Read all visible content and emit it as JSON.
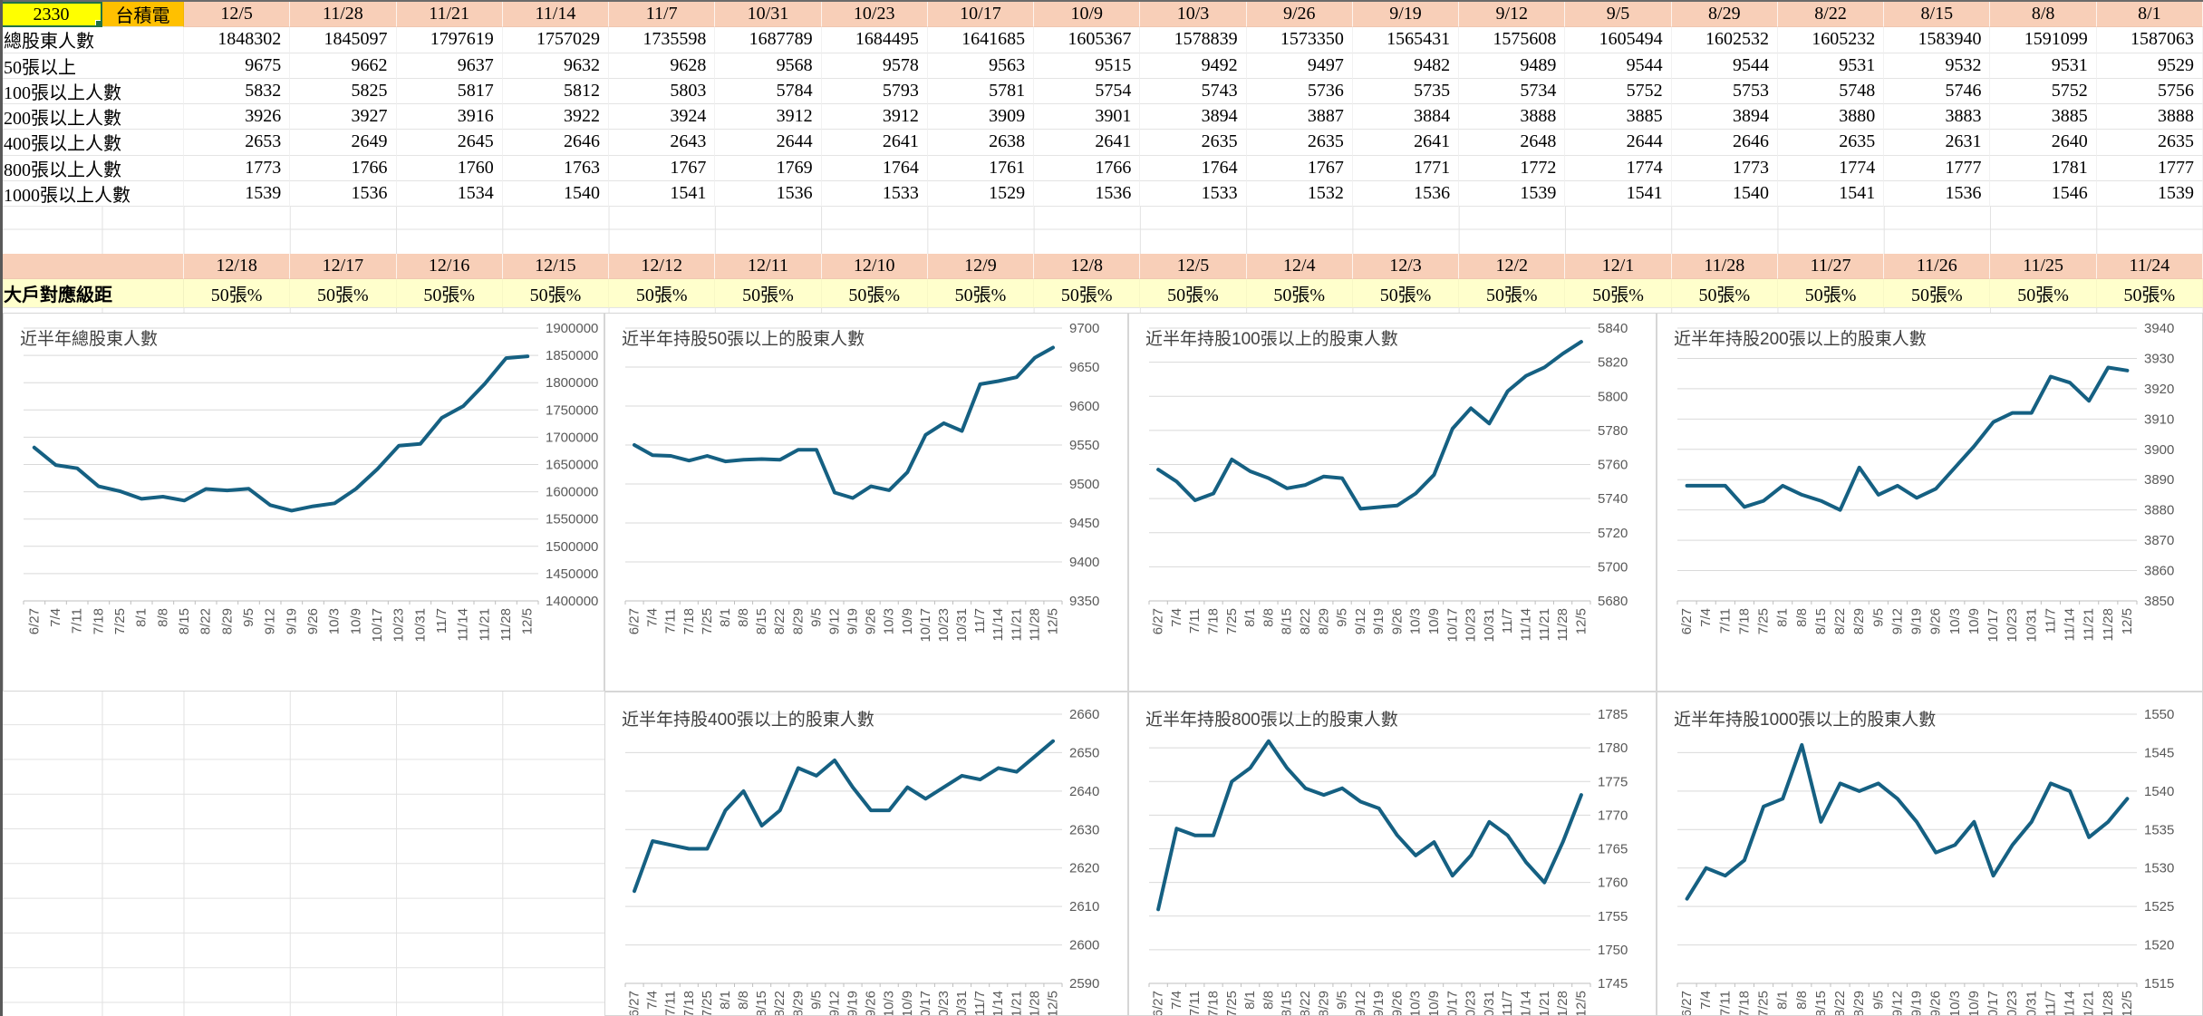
{
  "stock": {
    "id": "2330",
    "name": "台積電"
  },
  "colors": {
    "line": "#156082",
    "chart_grid": "#D9D9D9",
    "axis_text": "#595959",
    "title_text": "#404040",
    "header_pink": "#F8CFB8",
    "band_yellow": "#FFFFCC",
    "stock_id_yellow": "#FFFF00",
    "stock_name_orange": "#FFC000",
    "selection_green": "#217346"
  },
  "table": {
    "dates": [
      "12/5",
      "11/28",
      "11/21",
      "11/14",
      "11/7",
      "10/31",
      "10/23",
      "10/17",
      "10/9",
      "10/3",
      "9/26",
      "9/19",
      "9/12",
      "9/5",
      "8/29",
      "8/22",
      "8/15",
      "8/8",
      "8/1"
    ],
    "rows": [
      {
        "label": "總股東人數",
        "values": [
          1848302,
          1845097,
          1797619,
          1757029,
          1735598,
          1687789,
          1684495,
          1641685,
          1605367,
          1578839,
          1573350,
          1565431,
          1575608,
          1605494,
          1602532,
          1605232,
          1583940,
          1591099,
          1587063
        ]
      },
      {
        "label": "50張以上",
        "values": [
          9675,
          9662,
          9637,
          9632,
          9628,
          9568,
          9578,
          9563,
          9515,
          9492,
          9497,
          9482,
          9489,
          9544,
          9544,
          9531,
          9532,
          9531,
          9529
        ]
      },
      {
        "label": "100張以上人數",
        "values": [
          5832,
          5825,
          5817,
          5812,
          5803,
          5784,
          5793,
          5781,
          5754,
          5743,
          5736,
          5735,
          5734,
          5752,
          5753,
          5748,
          5746,
          5752,
          5756
        ]
      },
      {
        "label": "200張以上人數",
        "values": [
          3926,
          3927,
          3916,
          3922,
          3924,
          3912,
          3912,
          3909,
          3901,
          3894,
          3887,
          3884,
          3888,
          3885,
          3894,
          3880,
          3883,
          3885,
          3888
        ]
      },
      {
        "label": "400張以上人數",
        "values": [
          2653,
          2649,
          2645,
          2646,
          2643,
          2644,
          2641,
          2638,
          2641,
          2635,
          2635,
          2641,
          2648,
          2644,
          2646,
          2635,
          2631,
          2640,
          2635
        ]
      },
      {
        "label": "800張以上人數",
        "values": [
          1773,
          1766,
          1760,
          1763,
          1767,
          1769,
          1764,
          1761,
          1766,
          1764,
          1767,
          1771,
          1772,
          1774,
          1773,
          1774,
          1777,
          1781,
          1777
        ]
      },
      {
        "label": "1000張以上人數",
        "values": [
          1539,
          1536,
          1534,
          1540,
          1541,
          1536,
          1533,
          1529,
          1536,
          1533,
          1532,
          1536,
          1539,
          1541,
          1540,
          1541,
          1536,
          1546,
          1539
        ]
      }
    ]
  },
  "band": {
    "dates": [
      "12/18",
      "12/17",
      "12/16",
      "12/15",
      "12/12",
      "12/11",
      "12/10",
      "12/9",
      "12/8",
      "12/5",
      "12/4",
      "12/3",
      "12/2",
      "12/1",
      "11/28",
      "11/27",
      "11/26",
      "11/25",
      "11/24"
    ],
    "label": "大戶對應級距",
    "cell_value": "50張%"
  },
  "chart_data": [
    {
      "type": "line",
      "title": "近半年總股東人數",
      "x": [
        "6/27",
        "7/4",
        "7/11",
        "7/18",
        "7/25",
        "8/1",
        "8/8",
        "8/15",
        "8/22",
        "8/29",
        "9/5",
        "9/12",
        "9/19",
        "9/26",
        "10/3",
        "10/9",
        "10/17",
        "10/23",
        "10/31",
        "11/7",
        "11/14",
        "11/21",
        "11/28",
        "12/5"
      ],
      "values": [
        1681000,
        1649000,
        1643000,
        1610000,
        1601000,
        1587063,
        1591099,
        1583940,
        1605232,
        1602532,
        1605494,
        1575608,
        1565431,
        1573350,
        1578839,
        1605367,
        1641685,
        1684495,
        1687789,
        1735598,
        1757029,
        1797619,
        1845097,
        1848302
      ],
      "ylim": [
        1400000,
        1900000
      ],
      "ytick_step": 50000,
      "value_axis": "right",
      "grid": true,
      "row": 0,
      "col": 0
    },
    {
      "type": "line",
      "title": "近半年持股50張以上的股東人數",
      "x": [
        "6/27",
        "7/4",
        "7/11",
        "7/18",
        "7/25",
        "8/1",
        "8/8",
        "8/15",
        "8/22",
        "8/29",
        "9/5",
        "9/12",
        "9/19",
        "9/26",
        "10/3",
        "10/9",
        "10/17",
        "10/23",
        "10/31",
        "11/7",
        "11/14",
        "11/21",
        "11/28",
        "12/5"
      ],
      "values": [
        9550,
        9537,
        9536,
        9530,
        9536,
        9529,
        9531,
        9532,
        9531,
        9544,
        9544,
        9489,
        9482,
        9497,
        9492,
        9515,
        9563,
        9578,
        9568,
        9628,
        9632,
        9637,
        9662,
        9675
      ],
      "ylim": [
        9350,
        9700
      ],
      "ytick_step": 50,
      "value_axis": "right",
      "grid": true,
      "row": 0,
      "col": 1
    },
    {
      "type": "line",
      "title": "近半年持股100張以上的股東人數",
      "x": [
        "6/27",
        "7/4",
        "7/11",
        "7/18",
        "7/25",
        "8/1",
        "8/8",
        "8/15",
        "8/22",
        "8/29",
        "9/5",
        "9/12",
        "9/19",
        "9/26",
        "10/3",
        "10/9",
        "10/17",
        "10/23",
        "10/31",
        "11/7",
        "11/14",
        "11/21",
        "11/28",
        "12/5"
      ],
      "values": [
        5757,
        5750,
        5739,
        5743,
        5763,
        5756,
        5752,
        5746,
        5748,
        5753,
        5752,
        5734,
        5735,
        5736,
        5743,
        5754,
        5781,
        5793,
        5784,
        5803,
        5812,
        5817,
        5825,
        5832
      ],
      "ylim": [
        5680,
        5840
      ],
      "ytick_step": 20,
      "value_axis": "right",
      "grid": true,
      "row": 0,
      "col": 2
    },
    {
      "type": "line",
      "title": "近半年持股200張以上的股東人數",
      "x": [
        "6/27",
        "7/4",
        "7/11",
        "7/18",
        "7/25",
        "8/1",
        "8/8",
        "8/15",
        "8/22",
        "8/29",
        "9/5",
        "9/12",
        "9/19",
        "9/26",
        "10/3",
        "10/9",
        "10/17",
        "10/23",
        "10/31",
        "11/7",
        "11/14",
        "11/21",
        "11/28",
        "12/5"
      ],
      "values": [
        3888,
        3888,
        3888,
        3881,
        3883,
        3888,
        3885,
        3883,
        3880,
        3894,
        3885,
        3888,
        3884,
        3887,
        3894,
        3901,
        3909,
        3912,
        3912,
        3924,
        3922,
        3916,
        3927,
        3926
      ],
      "ylim": [
        3850,
        3940
      ],
      "ytick_step": 10,
      "value_axis": "right",
      "grid": true,
      "row": 0,
      "col": 3
    },
    {
      "type": "line",
      "title": "近半年持股400張以上的股東人數",
      "x": [
        "6/27",
        "7/4",
        "7/11",
        "7/18",
        "7/25",
        "8/1",
        "8/8",
        "8/15",
        "8/22",
        "8/29",
        "9/5",
        "9/12",
        "9/19",
        "9/26",
        "10/3",
        "10/9",
        "10/17",
        "10/23",
        "10/31",
        "11/7",
        "11/14",
        "11/21",
        "11/28",
        "12/5"
      ],
      "values": [
        2614,
        2627,
        2626,
        2625,
        2625,
        2635,
        2640,
        2631,
        2635,
        2646,
        2644,
        2648,
        2641,
        2635,
        2635,
        2641,
        2638,
        2641,
        2644,
        2643,
        2646,
        2645,
        2649,
        2653
      ],
      "ylim": [
        2590,
        2660
      ],
      "ytick_step": 10,
      "value_axis": "right",
      "grid": true,
      "row": 1,
      "col": 1
    },
    {
      "type": "line",
      "title": "近半年持股800張以上的股東人數",
      "x": [
        "6/27",
        "7/4",
        "7/11",
        "7/18",
        "7/25",
        "8/1",
        "8/8",
        "8/15",
        "8/22",
        "8/29",
        "9/5",
        "9/12",
        "9/19",
        "9/26",
        "10/3",
        "10/9",
        "10/17",
        "10/23",
        "10/31",
        "11/7",
        "11/14",
        "11/21",
        "11/28",
        "12/5"
      ],
      "values": [
        1756,
        1768,
        1767,
        1767,
        1775,
        1777,
        1781,
        1777,
        1774,
        1773,
        1774,
        1772,
        1771,
        1767,
        1764,
        1766,
        1761,
        1764,
        1769,
        1767,
        1763,
        1760,
        1766,
        1773
      ],
      "ylim": [
        1745,
        1785
      ],
      "ytick_step": 5,
      "value_axis": "right",
      "grid": true,
      "row": 1,
      "col": 2
    },
    {
      "type": "line",
      "title": "近半年持股1000張以上的股東人數",
      "x": [
        "6/27",
        "7/4",
        "7/11",
        "7/18",
        "7/25",
        "8/1",
        "8/8",
        "8/15",
        "8/22",
        "8/29",
        "9/5",
        "9/12",
        "9/19",
        "9/26",
        "10/3",
        "10/9",
        "10/17",
        "10/23",
        "10/31",
        "11/7",
        "11/14",
        "11/21",
        "11/28",
        "12/5"
      ],
      "values": [
        1526,
        1530,
        1529,
        1531,
        1538,
        1539,
        1546,
        1536,
        1541,
        1540,
        1541,
        1539,
        1536,
        1532,
        1533,
        1536,
        1529,
        1533,
        1536,
        1541,
        1540,
        1534,
        1536,
        1539
      ],
      "ylim": [
        1515,
        1550
      ],
      "ytick_step": 5,
      "value_axis": "right",
      "grid": true,
      "row": 1,
      "col": 3
    }
  ]
}
